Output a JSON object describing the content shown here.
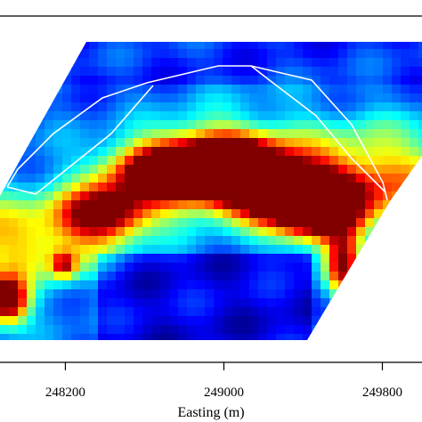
{
  "chart_data": {
    "type": "heatmap",
    "xlabel": "Easting (m)",
    "ylabel": "",
    "title": "",
    "x_ticks": [
      {
        "value": 248200,
        "label": "248200"
      },
      {
        "value": 249000,
        "label": "249000"
      },
      {
        "value": 249800,
        "label": "249800"
      }
    ],
    "xlim": [
      247870,
      250000
    ],
    "colormap": "jet",
    "value_range": [
      0,
      1
    ],
    "grid": false,
    "legend": "none",
    "outline_color": "#ffffff",
    "hotspots": [
      {
        "x": 248900,
        "v": 0.95
      },
      {
        "x": 249300,
        "v": 1.0
      },
      {
        "x": 249600,
        "v": 0.85
      },
      {
        "x": 248250,
        "v": 0.7
      },
      {
        "x": 247920,
        "v": 0.9
      },
      {
        "x": 248150,
        "v": 0.6
      },
      {
        "x": 249750,
        "v": 0.75
      }
    ]
  }
}
